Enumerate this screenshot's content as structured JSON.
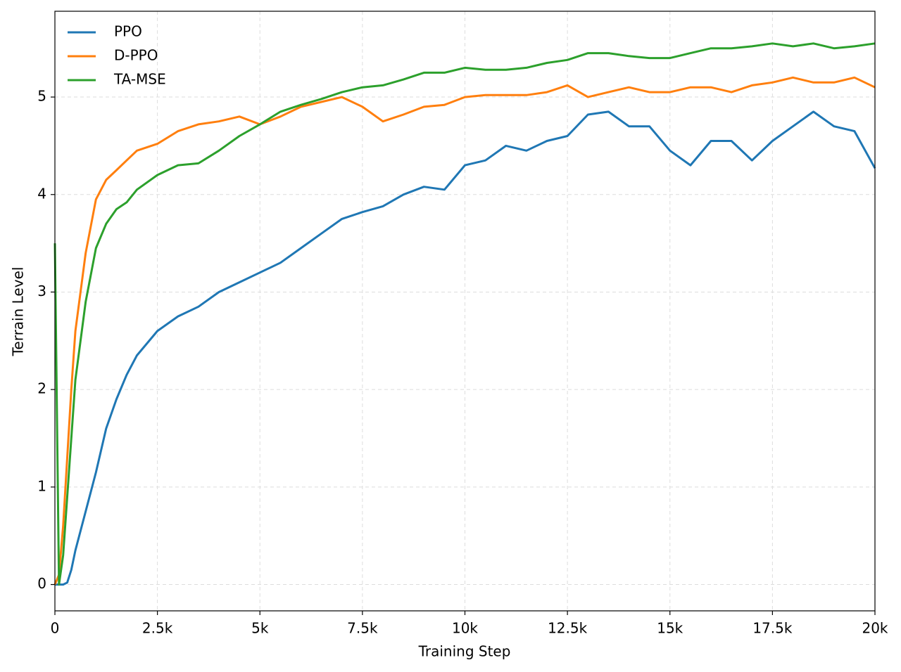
{
  "chart_data": {
    "type": "line",
    "xlabel": "Training Step",
    "ylabel": "Terrain Level",
    "x": [
      0,
      100,
      200,
      300,
      400,
      500,
      750,
      1000,
      1250,
      1500,
      1750,
      2000,
      2500,
      3000,
      3500,
      4000,
      4500,
      5000,
      5500,
      6000,
      6500,
      7000,
      7500,
      8000,
      8500,
      9000,
      9500,
      10000,
      10500,
      11000,
      11500,
      12000,
      12500,
      13000,
      13500,
      14000,
      14500,
      15000,
      15500,
      16000,
      16500,
      17000,
      17500,
      18000,
      18500,
      19000,
      19500,
      20000
    ],
    "series": [
      {
        "name": "PPO",
        "color": "#1f77b4",
        "values": [
          0,
          0,
          0,
          0.02,
          0.15,
          0.35,
          0.75,
          1.15,
          1.6,
          1.9,
          2.15,
          2.35,
          2.6,
          2.75,
          2.85,
          3.0,
          3.1,
          3.2,
          3.3,
          3.45,
          3.6,
          3.75,
          3.82,
          3.88,
          4.0,
          4.08,
          4.05,
          4.3,
          4.35,
          4.5,
          4.45,
          4.55,
          4.6,
          4.82,
          4.85,
          4.7,
          4.7,
          4.45,
          4.3,
          4.55,
          4.55,
          4.35,
          4.55,
          4.7,
          4.85,
          4.7,
          4.65,
          4.27
        ]
      },
      {
        "name": "D-PPO",
        "color": "#ff7f0e",
        "values": [
          0,
          0.1,
          0.6,
          1.3,
          2.0,
          2.6,
          3.4,
          3.95,
          4.15,
          4.25,
          4.35,
          4.45,
          4.52,
          4.65,
          4.72,
          4.75,
          4.8,
          4.72,
          4.8,
          4.9,
          4.95,
          5.0,
          4.9,
          4.75,
          4.82,
          4.9,
          4.92,
          5.0,
          5.02,
          5.02,
          5.02,
          5.05,
          5.12,
          5.0,
          5.05,
          5.1,
          5.05,
          5.05,
          5.1,
          5.1,
          5.05,
          5.12,
          5.15,
          5.2,
          5.15,
          5.15,
          5.2,
          5.1
        ]
      },
      {
        "name": "TA-MSE",
        "color": "#2ca02c",
        "values": [
          3.5,
          0,
          0.3,
          0.9,
          1.5,
          2.1,
          2.9,
          3.45,
          3.7,
          3.85,
          3.92,
          4.05,
          4.2,
          4.3,
          4.32,
          4.45,
          4.6,
          4.72,
          4.85,
          4.92,
          4.98,
          5.05,
          5.1,
          5.12,
          5.18,
          5.25,
          5.25,
          5.3,
          5.28,
          5.28,
          5.3,
          5.35,
          5.38,
          5.45,
          5.45,
          5.42,
          5.4,
          5.4,
          5.45,
          5.5,
          5.5,
          5.52,
          5.55,
          5.52,
          5.55,
          5.5,
          5.52,
          5.55
        ]
      }
    ],
    "xlim": [
      0,
      20000
    ],
    "ylim": [
      -0.27,
      5.88
    ],
    "xticks": [
      0,
      {
        "value": 2500,
        "label": "2.5k"
      },
      {
        "value": 5000,
        "label": "5k"
      },
      {
        "value": 7500,
        "label": "7.5k"
      },
      {
        "value": 10000,
        "label": "10k"
      },
      {
        "value": 12500,
        "label": "12.5k"
      },
      {
        "value": 15000,
        "label": "15k"
      },
      {
        "value": 17500,
        "label": "17.5k"
      },
      {
        "value": 20000,
        "label": "20k"
      }
    ],
    "yticks": [
      0,
      1,
      2,
      3,
      4,
      5
    ],
    "grid": true,
    "legend": "upper-left"
  }
}
